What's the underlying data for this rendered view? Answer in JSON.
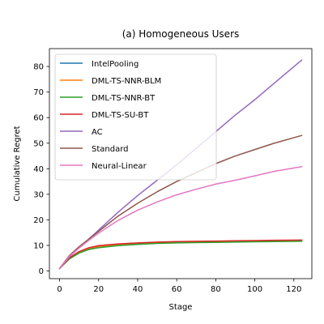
{
  "chart_data": {
    "type": "line",
    "title": "(a) Homogeneous Users",
    "xlabel": "Stage",
    "ylabel": "Cumulative Regret",
    "xlim": [
      -5.2,
      129.2
    ],
    "ylim": [
      -3.0,
      87.0
    ],
    "xticks": [
      0,
      20,
      40,
      60,
      80,
      100,
      120
    ],
    "yticks": [
      0,
      10,
      20,
      30,
      40,
      50,
      60,
      70,
      80
    ],
    "grid": false,
    "legend_position": "top-left",
    "series": [
      {
        "name": "IntelPooling",
        "color": "#1f77b4",
        "x": [
          0,
          5,
          10,
          15,
          20,
          30,
          40,
          50,
          60,
          70,
          80,
          90,
          100,
          110,
          124
        ],
        "y": [
          1.0,
          5.0,
          7.3,
          8.7,
          9.5,
          10.3,
          10.8,
          11.1,
          11.3,
          11.4,
          11.5,
          11.6,
          11.7,
          11.8,
          11.9
        ]
      },
      {
        "name": "DML-TS-NNR-BLM",
        "color": "#ff7f0e",
        "x": [
          0,
          5,
          10,
          15,
          20,
          30,
          40,
          50,
          60,
          70,
          80,
          90,
          100,
          110,
          124
        ],
        "y": [
          1.0,
          5.0,
          7.4,
          8.9,
          9.6,
          10.4,
          10.9,
          11.2,
          11.4,
          11.5,
          11.6,
          11.7,
          11.8,
          11.9,
          12.0
        ]
      },
      {
        "name": "DML-TS-NNR-BT",
        "color": "#2ca02c",
        "x": [
          0,
          5,
          10,
          15,
          20,
          30,
          40,
          50,
          60,
          70,
          80,
          90,
          100,
          110,
          124
        ],
        "y": [
          1.0,
          4.7,
          7.0,
          8.4,
          9.1,
          9.9,
          10.4,
          10.8,
          11.0,
          11.1,
          11.2,
          11.3,
          11.4,
          11.5,
          11.6
        ]
      },
      {
        "name": "DML-TS-SU-BT",
        "color": "#d62728",
        "x": [
          0,
          5,
          10,
          15,
          20,
          30,
          40,
          50,
          60,
          70,
          80,
          90,
          100,
          110,
          124
        ],
        "y": [
          1.0,
          5.1,
          7.6,
          9.1,
          9.9,
          10.6,
          11.0,
          11.3,
          11.5,
          11.6,
          11.7,
          11.8,
          11.9,
          12.0,
          12.1
        ]
      },
      {
        "name": "AC",
        "color": "#9467bd",
        "x": [
          0,
          5,
          10,
          15,
          20,
          30,
          40,
          50,
          60,
          70,
          80,
          90,
          100,
          110,
          124
        ],
        "y": [
          1.0,
          5.5,
          9.0,
          12.5,
          16.0,
          23.0,
          29.5,
          35.5,
          41.5,
          48.0,
          54.5,
          61.0,
          67.0,
          73.5,
          82.5
        ]
      },
      {
        "name": "Standard",
        "color": "#8c564b",
        "x": [
          0,
          5,
          10,
          15,
          20,
          30,
          40,
          50,
          60,
          70,
          80,
          90,
          100,
          110,
          124
        ],
        "y": [
          1.0,
          6.0,
          9.5,
          12.5,
          15.5,
          21.5,
          26.5,
          31.0,
          35.0,
          38.5,
          42.0,
          45.0,
          47.5,
          50.0,
          53.0
        ]
      },
      {
        "name": "Neural-Linear",
        "color": "#e377c2",
        "x": [
          0,
          5,
          10,
          15,
          20,
          30,
          40,
          50,
          60,
          70,
          80,
          90,
          100,
          110,
          124
        ],
        "y": [
          1.0,
          5.7,
          9.0,
          12.0,
          14.8,
          19.8,
          23.8,
          27.0,
          29.8,
          32.0,
          34.0,
          35.5,
          37.2,
          39.0,
          40.8
        ]
      }
    ]
  }
}
